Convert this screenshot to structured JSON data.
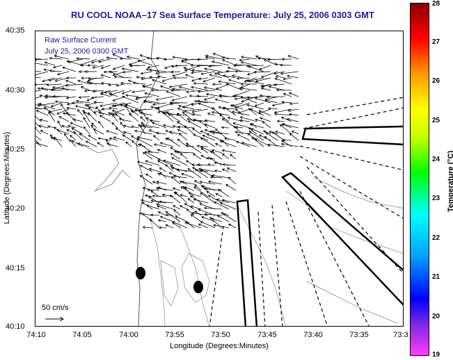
{
  "title": "RU COOL  NOAA–17  Sea Surface Temperature:  July 25, 2006 0303 GMT",
  "legend": {
    "line1": "Raw Surface Current",
    "line2": "July 25, 2006 0300 GMT"
  },
  "axes": {
    "xlabel": "Longitude (Degrees:Minutes)",
    "ylabel": "Latitude (Degrees:Minutes)",
    "xticks": [
      "74:10",
      "74:05",
      "74:00",
      "73:55",
      "73:50",
      "73:45",
      "73:40",
      "73:35",
      "73:3"
    ],
    "yticks": [
      "40:35",
      "40:30",
      "40:25",
      "40:20",
      "40:15",
      "40:10"
    ]
  },
  "colorbar": {
    "label": "Temperature (°C)",
    "ticks": [
      "28",
      "27",
      "26",
      "25",
      "24",
      "23",
      "22",
      "21",
      "20",
      "19"
    ]
  },
  "scale": {
    "label": "50 cm/s"
  },
  "colors": {
    "title": "#1a1aa0",
    "legend": "#1a1aa0"
  }
}
